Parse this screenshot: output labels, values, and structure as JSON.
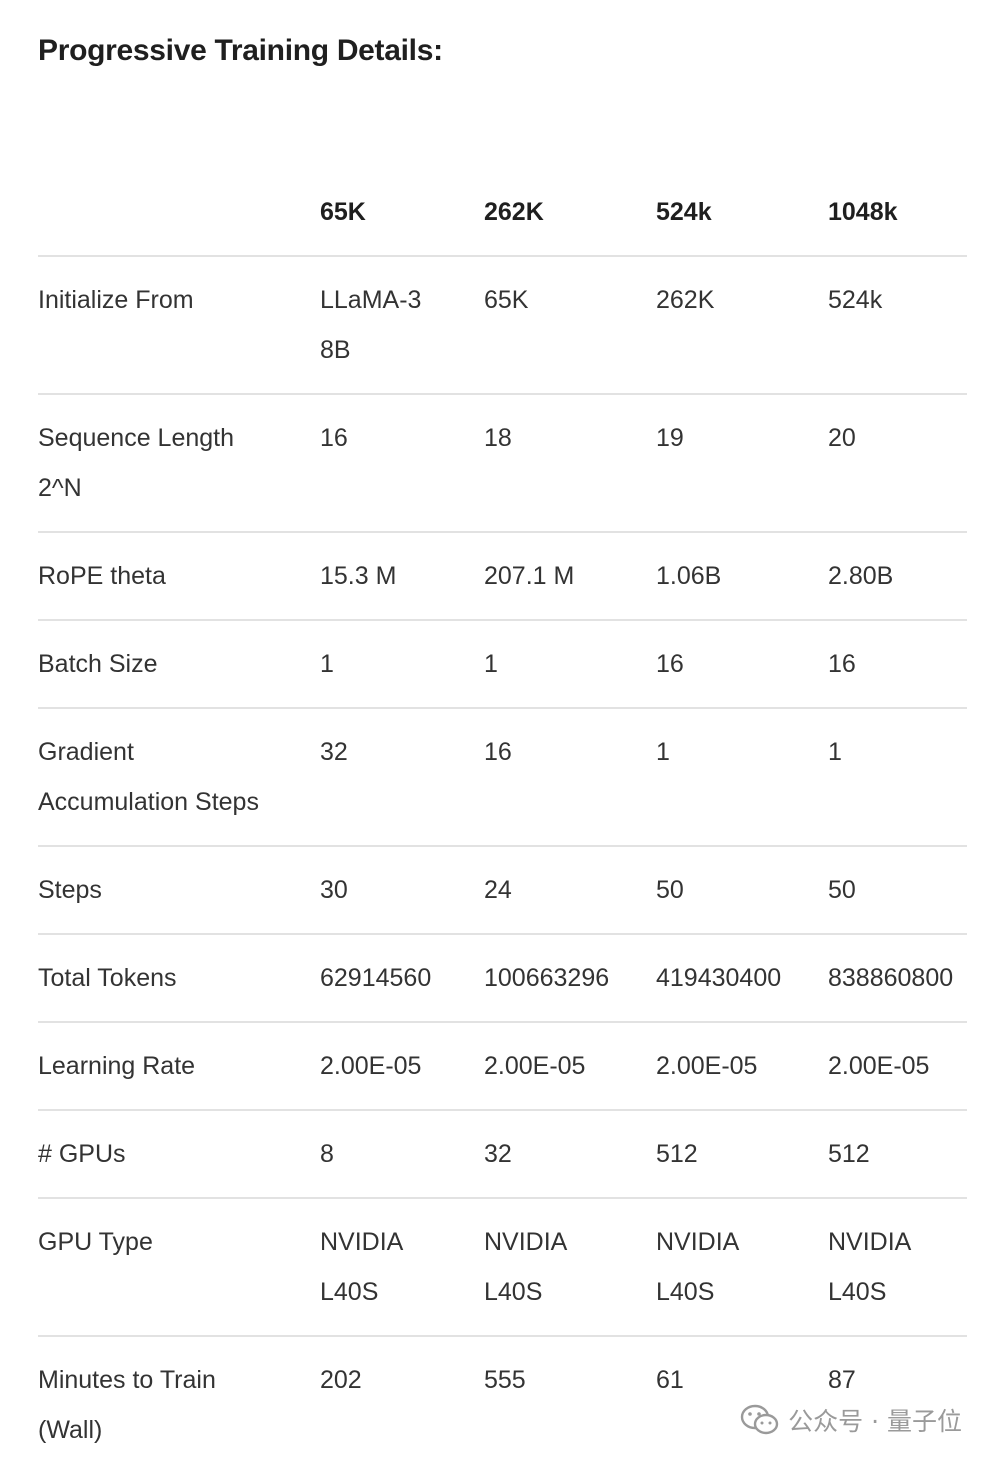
{
  "title": "Progressive Training Details:",
  "table": {
    "header": [
      "",
      "65K",
      "262K",
      "524k",
      "1048k"
    ],
    "rows": [
      [
        [
          "Initialize From"
        ],
        [
          "LLaMA-3",
          "8B"
        ],
        [
          "65K"
        ],
        [
          "262K"
        ],
        [
          "524k"
        ]
      ],
      [
        [
          "Sequence Length",
          "2^N"
        ],
        [
          "16"
        ],
        [
          "18"
        ],
        [
          "19"
        ],
        [
          "20"
        ]
      ],
      [
        [
          "RoPE theta"
        ],
        [
          "15.3 M"
        ],
        [
          "207.1 M"
        ],
        [
          "1.06B"
        ],
        [
          "2.80B"
        ]
      ],
      [
        [
          "Batch Size"
        ],
        [
          "1"
        ],
        [
          "1"
        ],
        [
          "16"
        ],
        [
          "16"
        ]
      ],
      [
        [
          "Gradient",
          "Accumulation Steps"
        ],
        [
          "32"
        ],
        [
          "16"
        ],
        [
          "1"
        ],
        [
          "1"
        ]
      ],
      [
        [
          "Steps"
        ],
        [
          "30"
        ],
        [
          "24"
        ],
        [
          "50"
        ],
        [
          "50"
        ]
      ],
      [
        [
          "Total Tokens"
        ],
        [
          "62914560"
        ],
        [
          "100663296"
        ],
        [
          "419430400"
        ],
        [
          "838860800"
        ]
      ],
      [
        [
          "Learning Rate"
        ],
        [
          "2.00E-05"
        ],
        [
          "2.00E-05"
        ],
        [
          "2.00E-05"
        ],
        [
          "2.00E-05"
        ]
      ],
      [
        [
          "# GPUs"
        ],
        [
          "8"
        ],
        [
          "32"
        ],
        [
          "512"
        ],
        [
          "512"
        ]
      ],
      [
        [
          "GPU Type"
        ],
        [
          "NVIDIA",
          "L40S"
        ],
        [
          "NVIDIA",
          "L40S"
        ],
        [
          "NVIDIA",
          "L40S"
        ],
        [
          "NVIDIA",
          "L40S"
        ]
      ],
      [
        [
          "Minutes to Train",
          "(Wall)"
        ],
        [
          "202"
        ],
        [
          "555"
        ],
        [
          "61"
        ],
        [
          "87"
        ]
      ]
    ]
  },
  "watermark": "公众号 · 量子位"
}
